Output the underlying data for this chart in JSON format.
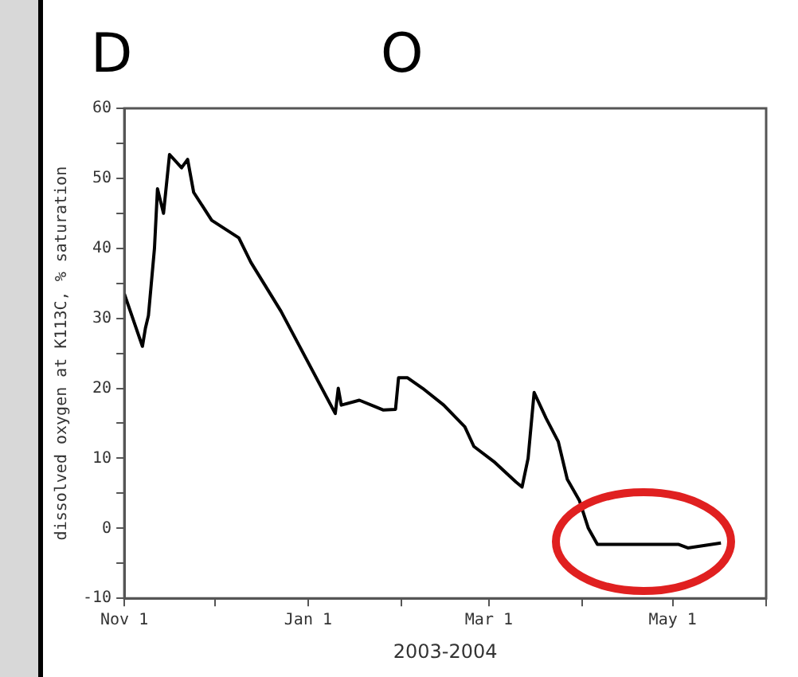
{
  "chart_data": {
    "type": "line",
    "xlabel": "2003-2004",
    "ylabel": "dissolved oxygen at K113C, % saturation",
    "annotations": [
      "D",
      "O"
    ],
    "x": [
      "2003-11-01",
      "2003-11-07",
      "2003-11-08",
      "2003-11-09",
      "2003-11-11",
      "2003-11-12",
      "2003-11-14",
      "2003-11-16",
      "2003-11-20",
      "2003-11-22",
      "2003-11-24",
      "2003-11-30",
      "2003-12-09",
      "2003-12-13",
      "2003-12-23",
      "2004-01-10",
      "2004-01-11",
      "2004-01-12",
      "2004-01-18",
      "2004-01-26",
      "2004-01-30",
      "2004-01-31",
      "2004-02-03",
      "2004-02-08",
      "2004-02-15",
      "2004-02-22",
      "2004-02-25",
      "2004-03-03",
      "2004-03-10",
      "2004-03-12",
      "2004-03-14",
      "2004-03-16",
      "2004-03-20",
      "2004-03-24",
      "2004-03-27",
      "2004-03-31",
      "2004-04-03",
      "2004-04-06",
      "2004-05-03",
      "2004-05-06",
      "2004-05-17"
    ],
    "series": [
      {
        "color": "#000000",
        "values": [
          33.5,
          26,
          28.6,
          30.4,
          40,
          48.5,
          45,
          53.4,
          51.5,
          52.7,
          48,
          44,
          41.5,
          38,
          31,
          16.4,
          20,
          17.6,
          18.3,
          16.9,
          17,
          21.5,
          21.5,
          20,
          17.6,
          14.5,
          11.7,
          9.4,
          6.6,
          5.9,
          10,
          19.4,
          15.7,
          12.4,
          7,
          4,
          0,
          -2.3,
          -2.3,
          -2.8,
          -2.1
        ]
      }
    ],
    "xlim": [
      "2003-11-01",
      "2004-06-01"
    ],
    "xticks": [
      {
        "value": "2003-11-01",
        "label": "Nov 1"
      },
      {
        "value": "2003-12-01",
        "label": null
      },
      {
        "value": "2004-01-01",
        "label": "Jan 1"
      },
      {
        "value": "2004-02-01",
        "label": null
      },
      {
        "value": "2004-03-01",
        "label": "Mar 1"
      },
      {
        "value": "2004-04-01",
        "label": null
      },
      {
        "value": "2004-05-01",
        "label": "May 1"
      },
      {
        "value": "2004-06-01",
        "label": null
      }
    ],
    "ylim": [
      -10,
      60
    ],
    "yticks": [
      -10,
      {
        "value": -5,
        "label": null
      },
      0,
      {
        "value": 5,
        "label": null
      },
      10,
      {
        "value": 15,
        "label": null
      },
      20,
      {
        "value": 25,
        "label": null
      },
      30,
      {
        "value": 35,
        "label": null
      },
      40,
      {
        "value": 45,
        "label": null
      },
      50,
      {
        "value": 55,
        "label": null
      },
      60
    ],
    "grid": false,
    "legend": false,
    "marker": "none",
    "line_style": "solid"
  }
}
